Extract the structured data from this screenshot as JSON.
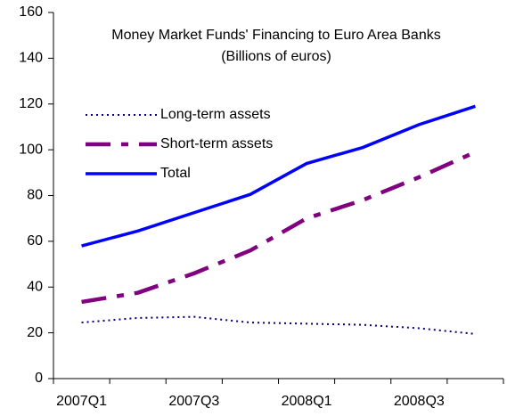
{
  "chart_data": {
    "type": "line",
    "title": "Money Market Funds' Financing to Euro Area Banks",
    "subtitle": "(Billions of euros)",
    "categories": [
      "2007Q1",
      null,
      "2007Q3",
      null,
      "2008Q1",
      null,
      "2008Q3",
      null
    ],
    "series": [
      {
        "name": "Long-term assets",
        "color": "#000080",
        "style": "dotted",
        "values": [
          24.5,
          26.5,
          27,
          24.5,
          24,
          23.5,
          22,
          19.5
        ]
      },
      {
        "name": "Short-term assets",
        "color": "#800080",
        "style": "dashdot",
        "values": [
          33.5,
          37.5,
          46,
          56,
          70,
          78,
          88,
          99
        ]
      },
      {
        "name": "Total",
        "color": "#0000ff",
        "style": "solid",
        "values": [
          58,
          64.5,
          72.5,
          80.5,
          94,
          101,
          111,
          119
        ]
      }
    ],
    "ylim": [
      0,
      160
    ],
    "yticks": [
      0,
      20,
      40,
      60,
      80,
      100,
      120,
      140,
      160
    ],
    "grid": false
  }
}
